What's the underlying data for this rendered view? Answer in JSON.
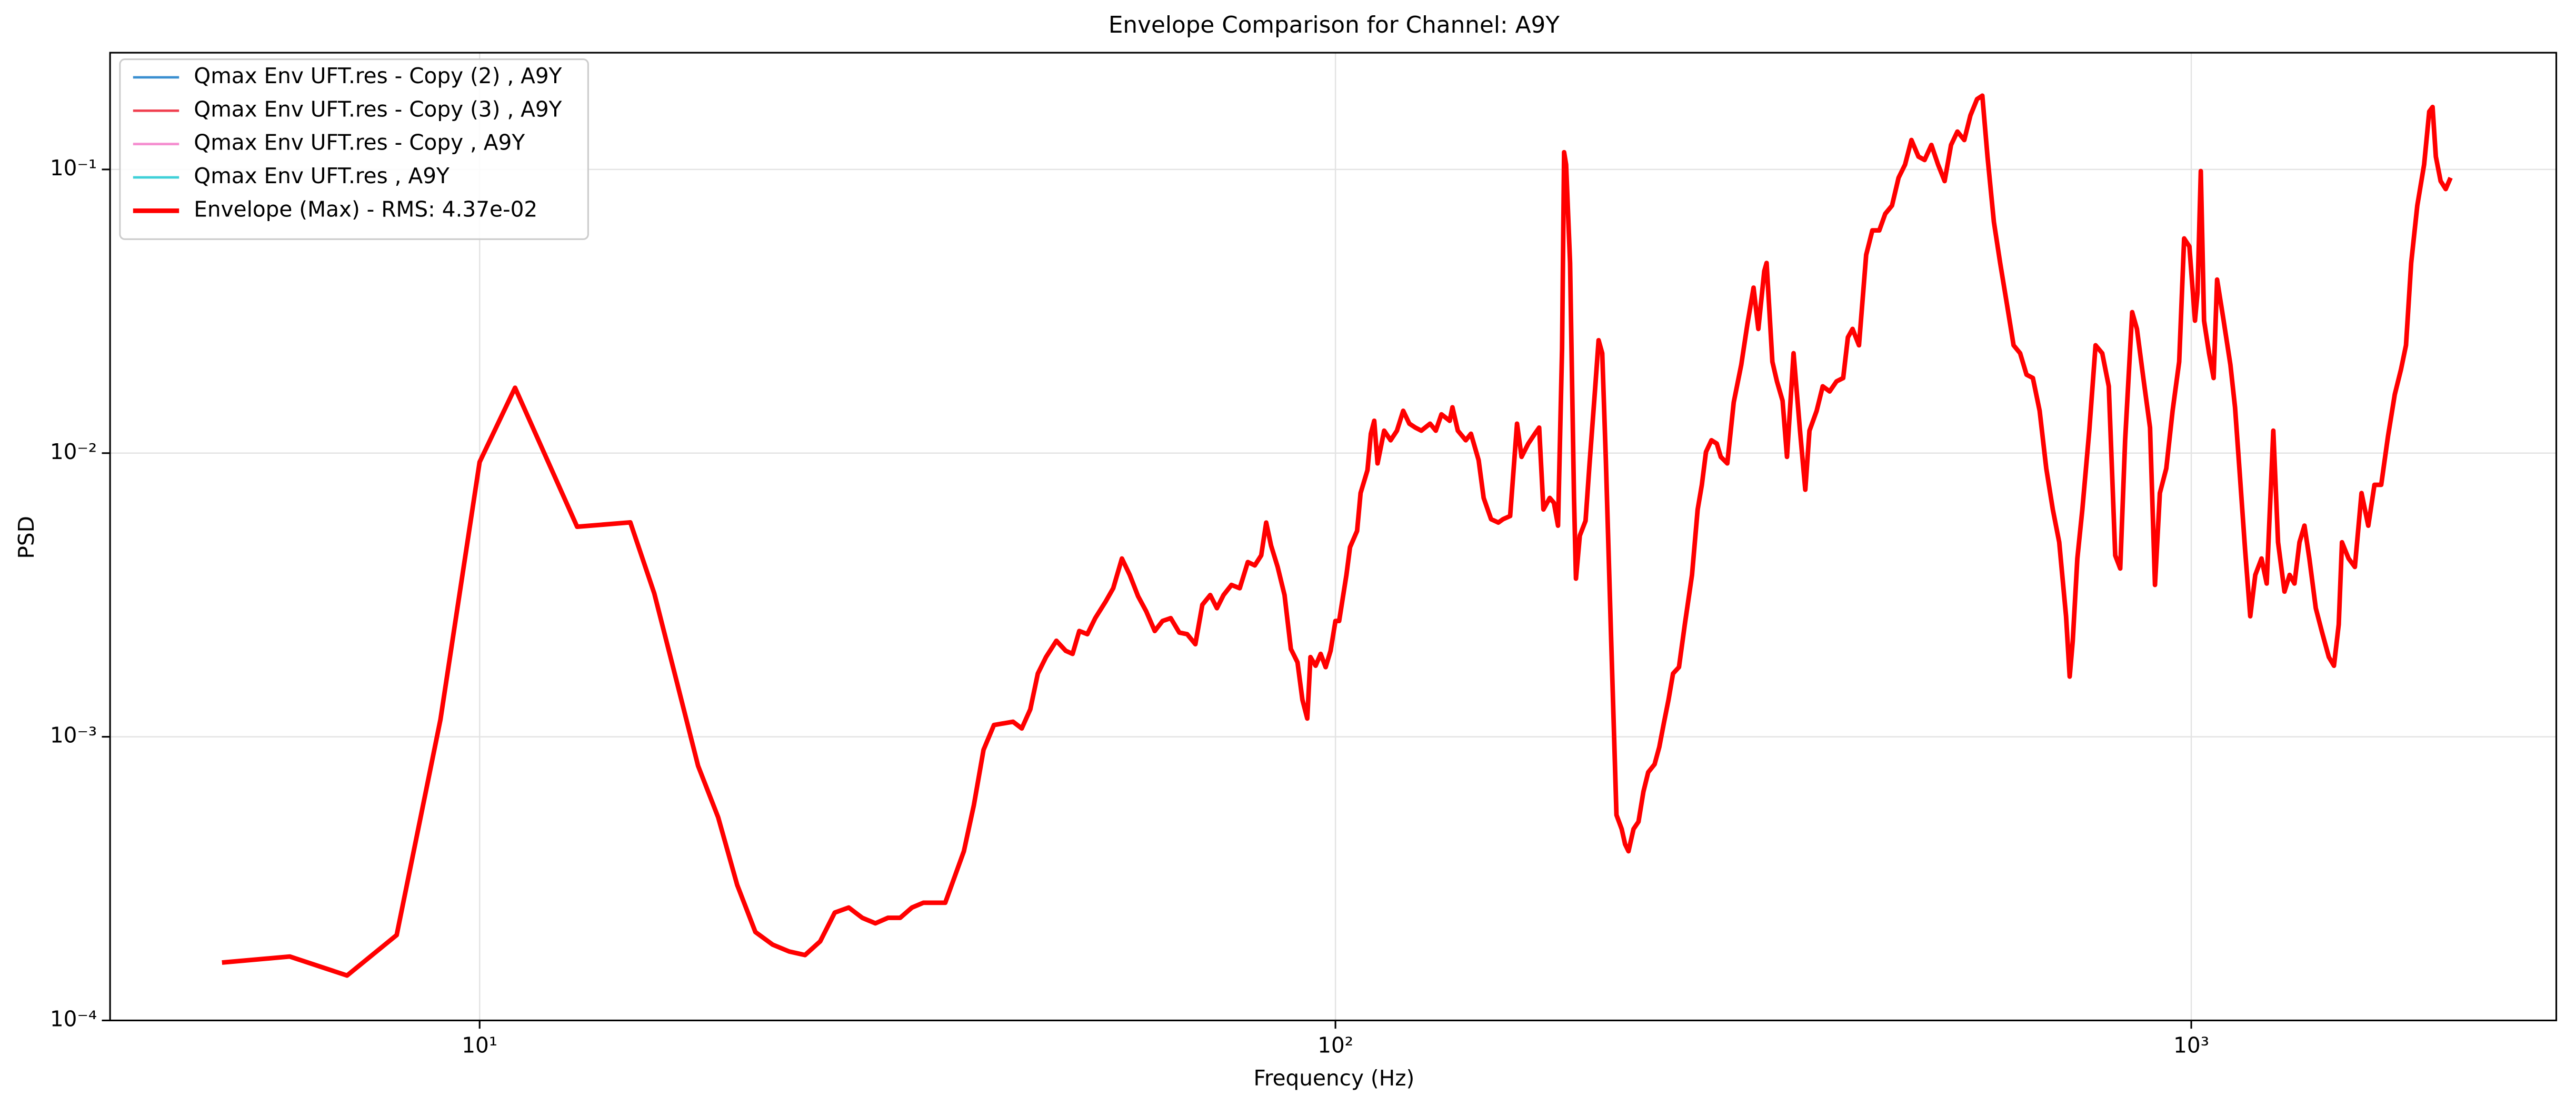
{
  "chart_data": {
    "type": "line",
    "title": "Envelope Comparison for Channel: A9Y",
    "x_label": "Frequency (Hz)",
    "y_label": "PSD",
    "x_scale": "log",
    "y_scale": "log",
    "grid": true,
    "legend_loc": "upper left",
    "xlim": [
      3.7,
      2670
    ],
    "ylim": [
      0.0001,
      0.258
    ],
    "xticks": [
      {
        "value": 10,
        "label": "10¹"
      },
      {
        "value": 100,
        "label": "10²"
      },
      {
        "value": 1000,
        "label": "10³"
      }
    ],
    "yticks": [
      {
        "value": 0.0001,
        "label": "10⁻⁴"
      },
      {
        "value": 0.001,
        "label": "10⁻³"
      },
      {
        "value": 0.01,
        "label": "10⁻²"
      },
      {
        "value": 0.1,
        "label": "10⁻¹"
      }
    ],
    "x": [
      5,
      6,
      7,
      8,
      9,
      10,
      11,
      13,
      15,
      16,
      17,
      18,
      19,
      20,
      21,
      22,
      23,
      24,
      25,
      26,
      27,
      28,
      29,
      30,
      31,
      32,
      33,
      35,
      36.8,
      37.8,
      38.8,
      39.9,
      42.0,
      43.0,
      44.0,
      44.9,
      45.9,
      47.2,
      48.4,
      49.3,
      50.2,
      51.3,
      52.4,
      53.9,
      55.0,
      56.3,
      57.5,
      58.8,
      60.1,
      61.5,
      62.8,
      64.2,
      65.7,
      67.1,
      68.6,
      69.9,
      71.4,
      72.7,
      74.0,
      75.6,
      77.3,
      79.0,
      80.5,
      81.9,
      83.0,
      84.1,
      85.6,
      87.2,
      88.7,
      90.3,
      91.5,
      92.7,
      93.5,
      94.8,
      96.1,
      97.4,
      98.7,
      100,
      101,
      103,
      104,
      106,
      107,
      109,
      110,
      111,
      112,
      114,
      116,
      118,
      120,
      122,
      124,
      126,
      129,
      131,
      133,
      136,
      137,
      139,
      142,
      144,
      147,
      149,
      152,
      155,
      157,
      160,
      163,
      165,
      168,
      171,
      173,
      175,
      178,
      180,
      182,
      184,
      185,
      186,
      188,
      190,
      191,
      193,
      196,
      198,
      201,
      203,
      205,
      207,
      210,
      213,
      216,
      218,
      220,
      223,
      226,
      229,
      232,
      236,
      239,
      242,
      245,
      248,
      252,
      256,
      261,
      265,
      268,
      271,
      275,
      279,
      282,
      287,
      292,
      298,
      303,
      308,
      312,
      317,
      319,
      324,
      328,
      333,
      337,
      343,
      349,
      354,
      358,
      365,
      371,
      378,
      385,
      392,
      397,
      402,
      409,
      417,
      424,
      432,
      439,
      447,
      455,
      463,
      471,
      480,
      488,
      497,
      506,
      515,
      524,
      533,
      543,
      552,
      562,
      570,
      578,
      588,
      598,
      609,
      620,
      631,
      642,
      653,
      665,
      677,
      689,
      701,
      714,
      721,
      727,
      736,
      746,
      760,
      773,
      787,
      801,
      815,
      826,
      837,
      853,
      864,
      879,
      895,
      907,
      919,
      935,
      951,
      968,
      981,
      995,
      1010,
      1017,
      1026,
      1035,
      1049,
      1062,
      1072,
      1091,
      1111,
      1125,
      1140,
      1156,
      1172,
      1188,
      1208,
      1225,
      1247,
      1263,
      1285,
      1303,
      1320,
      1338,
      1356,
      1374,
      1398,
      1422,
      1448,
      1468,
      1487,
      1500,
      1527,
      1553,
      1581,
      1610,
      1637,
      1667,
      1698,
      1729,
      1758,
      1782,
      1807,
      1837,
      1871,
      1897,
      1914,
      1931,
      1956,
      1983,
      2009
    ],
    "series": [
      {
        "name": "Qmax Env UFT.res - Copy (2) , A9Y",
        "color": "#3a8fd0"
      },
      {
        "name": "Qmax Env UFT.res - Copy (3) , A9Y",
        "color": "#f04050"
      },
      {
        "name": "Qmax Env UFT.res - Copy , A9Y",
        "color": "#f58fd0"
      },
      {
        "name": "Qmax Env UFT.res , A9Y",
        "color": "#40d0d8"
      },
      {
        "name": "Envelope (Max) - RMS: 4.37e-02",
        "color": "#ff0000",
        "values": [
          0.00016,
          0.000168,
          0.000144,
          0.0002,
          0.00115,
          0.0093,
          0.017,
          0.0055,
          0.0057,
          0.0032,
          0.00156,
          0.00079,
          0.00052,
          0.0003,
          0.000205,
          0.000185,
          0.000175,
          0.00017,
          0.00019,
          0.00024,
          0.00025,
          0.00023,
          0.00022,
          0.00023,
          0.00023,
          0.00025,
          0.00026,
          0.00026,
          0.000395,
          0.000574,
          0.0009,
          0.0011,
          0.00113,
          0.00107,
          0.00125,
          0.00167,
          0.00191,
          0.00218,
          0.00201,
          0.00196,
          0.00236,
          0.0023,
          0.00262,
          0.003,
          0.00334,
          0.00425,
          0.00372,
          0.00313,
          0.00277,
          0.00236,
          0.00256,
          0.00262,
          0.00233,
          0.0023,
          0.00212,
          0.00292,
          0.00316,
          0.00284,
          0.00316,
          0.00343,
          0.00334,
          0.00413,
          0.00402,
          0.00436,
          0.00569,
          0.00472,
          0.00397,
          0.00316,
          0.00204,
          0.00183,
          0.00135,
          0.00116,
          0.00191,
          0.00178,
          0.00196,
          0.00176,
          0.00201,
          0.00256,
          0.00256,
          0.00372,
          0.00466,
          0.00532,
          0.00723,
          0.00871,
          0.0117,
          0.013,
          0.0092,
          0.012,
          0.0111,
          0.012,
          0.0141,
          0.0127,
          0.0123,
          0.012,
          0.0127,
          0.012,
          0.0137,
          0.013,
          0.0145,
          0.012,
          0.0111,
          0.0117,
          0.00944,
          0.00695,
          0.00585,
          0.00569,
          0.00585,
          0.006,
          0.0127,
          0.0097,
          0.0108,
          0.0117,
          0.0123,
          0.00633,
          0.00695,
          0.00668,
          0.00555,
          0.0234,
          0.115,
          0.104,
          0.0468,
          0.00695,
          0.00361,
          0.00512,
          0.00577,
          0.00895,
          0.0165,
          0.025,
          0.0225,
          0.00944,
          0.00218,
          0.00053,
          0.000473,
          0.000418,
          0.000395,
          0.000473,
          0.000502,
          0.00064,
          0.00075,
          0.0008,
          0.00092,
          0.00112,
          0.00135,
          0.00167,
          0.00176,
          0.00249,
          0.00372,
          0.00633,
          0.00773,
          0.0101,
          0.0111,
          0.0108,
          0.0097,
          0.0092,
          0.0151,
          0.0205,
          0.0286,
          0.0383,
          0.0274,
          0.0438,
          0.0468,
          0.021,
          0.0179,
          0.0153,
          0.0097,
          0.0225,
          0.012,
          0.00743,
          0.012,
          0.0141,
          0.0172,
          0.0165,
          0.0179,
          0.0184,
          0.0256,
          0.0274,
          0.024,
          0.05,
          0.061,
          0.061,
          0.0698,
          0.0746,
          0.0935,
          0.104,
          0.127,
          0.111,
          0.108,
          0.122,
          0.104,
          0.091,
          0.122,
          0.136,
          0.127,
          0.155,
          0.177,
          0.182,
          0.111,
          0.0653,
          0.0468,
          0.0335,
          0.024,
          0.0225,
          0.0189,
          0.0184,
          0.0141,
          0.00883,
          0.00633,
          0.00485,
          0.00266,
          0.00163,
          0.00218,
          0.00425,
          0.00633,
          0.012,
          0.024,
          0.0225,
          0.0172,
          0.00436,
          0.00392,
          0.0111,
          0.0314,
          0.0274,
          0.0184,
          0.0123,
          0.00343,
          0.00723,
          0.00883,
          0.0141,
          0.021,
          0.0571,
          0.0535,
          0.0293,
          0.0368,
          0.0987,
          0.0293,
          0.0225,
          0.0184,
          0.0409,
          0.0293,
          0.0205,
          0.0145,
          0.00826,
          0.00454,
          0.00266,
          0.00372,
          0.00425,
          0.00347,
          0.012,
          0.00485,
          0.00325,
          0.00372,
          0.00347,
          0.00485,
          0.00555,
          0.00425,
          0.00284,
          0.00233,
          0.00191,
          0.00178,
          0.00249,
          0.00485,
          0.00425,
          0.00397,
          0.00723,
          0.00555,
          0.00773,
          0.00773,
          0.0115,
          0.0161,
          0.0197,
          0.024,
          0.0468,
          0.0746,
          0.104,
          0.16,
          0.166,
          0.111,
          0.091,
          0.0853,
          0.0935
        ]
      }
    ]
  }
}
